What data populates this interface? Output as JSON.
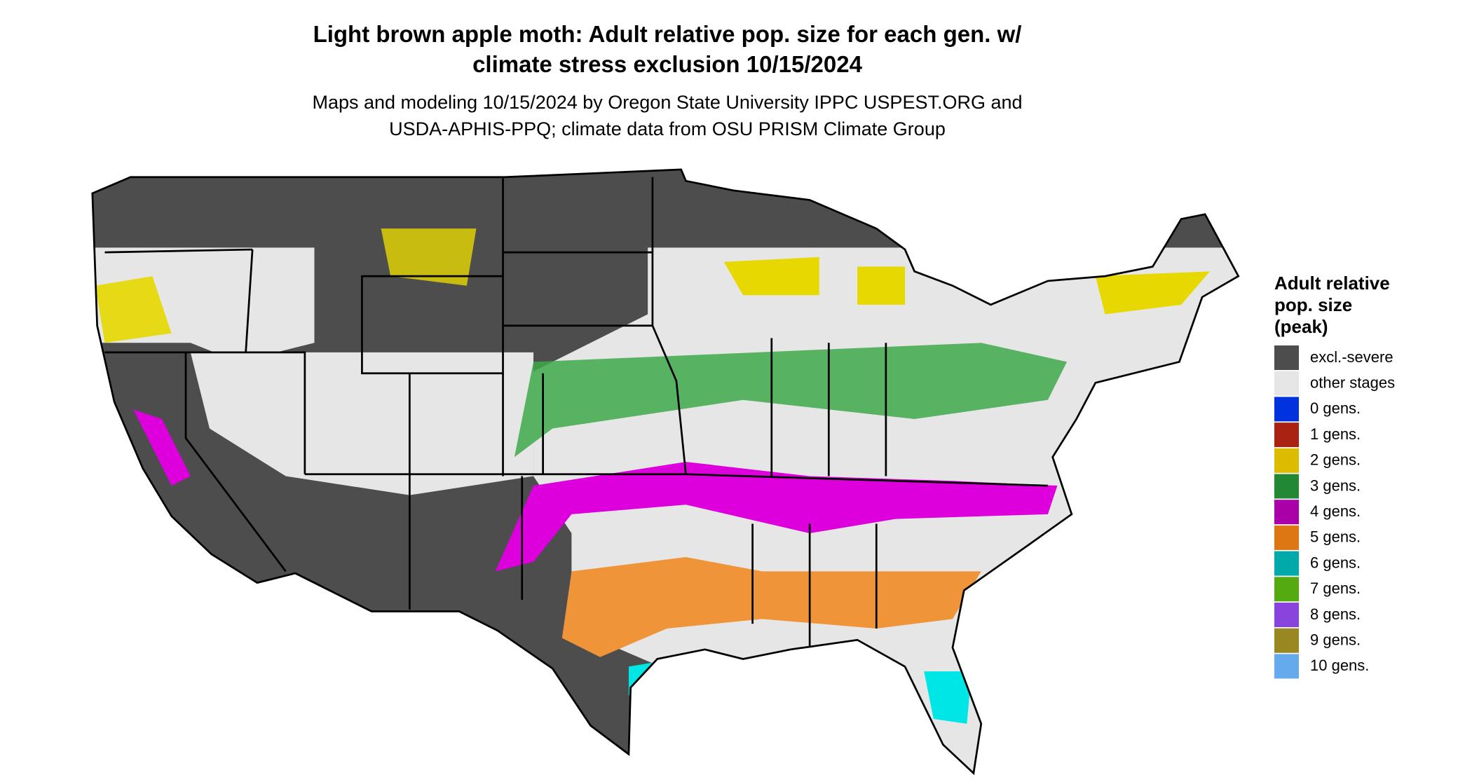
{
  "title_lines": [
    "Light brown apple moth: Adult relative pop. size for each gen. w/",
    "climate stress exclusion 10/15/2024"
  ],
  "subtitle_lines": [
    "Maps and modeling 10/15/2024 by Oregon State University IPPC USPEST.ORG and",
    "USDA-APHIS-PPQ; climate data from OSU PRISM Climate Group"
  ],
  "legend": {
    "title_lines": [
      "Adult relative",
      "pop. size",
      "(peak)"
    ],
    "items": [
      {
        "label": "excl.-severe",
        "color": "#4d4d4d"
      },
      {
        "label": "other stages",
        "color": "#e6e6e6"
      },
      {
        "label": "0 gens.",
        "color": "#0033dd"
      },
      {
        "label": "1 gens.",
        "color": "#aa2211"
      },
      {
        "label": "2 gens.",
        "color": "#ddbb00"
      },
      {
        "label": "3 gens.",
        "color": "#228833"
      },
      {
        "label": "4 gens.",
        "color": "#aa00aa"
      },
      {
        "label": "5 gens.",
        "color": "#dd7711"
      },
      {
        "label": "6 gens.",
        "color": "#00aaaa"
      },
      {
        "label": "7 gens.",
        "color": "#55aa11"
      },
      {
        "label": "8 gens.",
        "color": "#8844dd"
      },
      {
        "label": "9 gens.",
        "color": "#998822"
      },
      {
        "label": "10 gens.",
        "color": "#66aaee"
      }
    ]
  }
}
